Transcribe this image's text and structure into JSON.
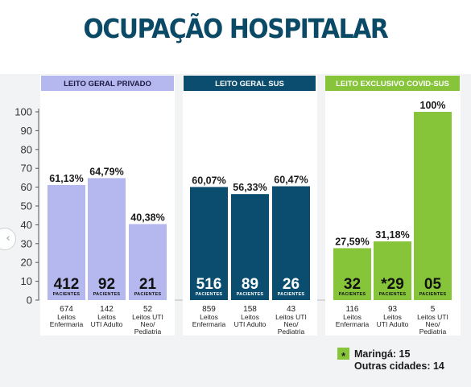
{
  "title": "OCUPAÇÃO HOSPITALAR",
  "nav_icon": "chevron-left-icon",
  "colors": {
    "privado": "#b5b8ef",
    "sus": "#0a4d6e",
    "covid": "#86c43a",
    "title": "#0a4a66"
  },
  "chart_data": {
    "type": "bar",
    "ylim": [
      0,
      100
    ],
    "yticks": [
      0,
      10,
      20,
      30,
      40,
      50,
      60,
      70,
      80,
      90,
      100
    ],
    "grid": false,
    "groups": [
      {
        "key": "privado",
        "header": "LEITO GERAL PRIVADO",
        "bars": [
          {
            "value": 61.13,
            "value_label": "61,13%",
            "count": "412",
            "count_unit": "PACIENTES",
            "beds": "674",
            "bed_label": [
              "Leitos",
              "Enfermaria"
            ]
          },
          {
            "value": 64.79,
            "value_label": "64,79%",
            "count": "92",
            "count_unit": "PACIENTES",
            "beds": "142",
            "bed_label": [
              "Leitos",
              "UTI Adulto"
            ]
          },
          {
            "value": 40.38,
            "value_label": "40,38%",
            "count": "21",
            "count_unit": "PACIENTES",
            "beds": "52",
            "bed_label": [
              "Leitos UTI",
              "Neo/",
              "Pediatria"
            ]
          }
        ]
      },
      {
        "key": "sus",
        "header": "LEITO GERAL SUS",
        "bars": [
          {
            "value": 60.07,
            "value_label": "60,07%",
            "count": "516",
            "count_unit": "PACIENTES",
            "beds": "859",
            "bed_label": [
              "Leitos",
              "Enfermaria"
            ]
          },
          {
            "value": 56.33,
            "value_label": "56,33%",
            "count": "89",
            "count_unit": "PACIENTES",
            "beds": "158",
            "bed_label": [
              "Leitos",
              "UTI Adulto"
            ]
          },
          {
            "value": 60.47,
            "value_label": "60,47%",
            "count": "26",
            "count_unit": "PACIENTES",
            "beds": "43",
            "bed_label": [
              "Leitos UTI",
              "Neo/",
              "Pediatria"
            ]
          }
        ]
      },
      {
        "key": "covid",
        "header": "LEITO EXCLUSIVO COVID-SUS",
        "bars": [
          {
            "value": 27.59,
            "value_label": "27,59%",
            "count": "32",
            "count_unit": "PACIENTES",
            "beds": "116",
            "bed_label": [
              "Leitos",
              "Enfermaria"
            ]
          },
          {
            "value": 31.18,
            "value_label": "31,18%",
            "count": "*29",
            "count_unit": "PACIENTES",
            "beds": "93",
            "bed_label": [
              "Leitos",
              "UTI Adulto"
            ]
          },
          {
            "value": 100,
            "value_label": "100%",
            "count": "05",
            "count_unit": "PACIENTES",
            "beds": "5",
            "bed_label": [
              "Leitos UTI",
              "Neo/",
              "Pediatria"
            ]
          }
        ]
      }
    ],
    "annotation": {
      "marker": "*",
      "lines": [
        "Maringá: 15",
        "Outras cidades: 14"
      ]
    }
  }
}
